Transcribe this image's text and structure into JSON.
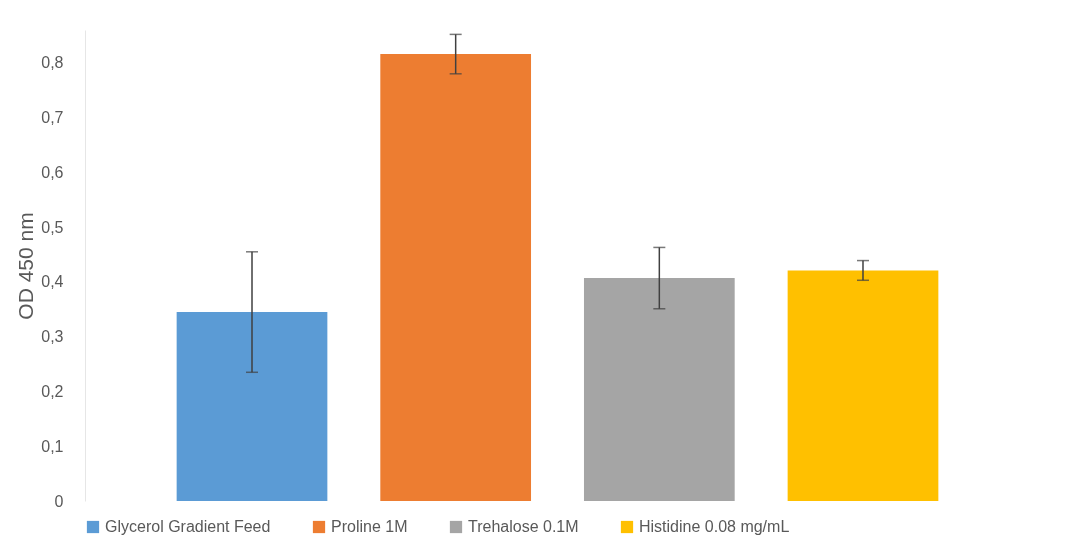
{
  "chart_data": {
    "type": "bar",
    "ylabel": "OD 450 nm",
    "categories": [
      null
    ],
    "series": [
      {
        "name": "Glycerol Gradient Feed",
        "color": "#5b9bd5",
        "values": [
          0.345
        ],
        "errors": [
          0.11
        ]
      },
      {
        "name": "Proline 1M",
        "color": "#ed7d31",
        "values": [
          0.816
        ],
        "errors": [
          0.036
        ]
      },
      {
        "name": "Trehalose 0.1M",
        "color": "#a5a5a5",
        "values": [
          0.407
        ],
        "errors": [
          0.056
        ]
      },
      {
        "name": "Histidine 0.08 mg/mL",
        "color": "#ffc000",
        "values": [
          0.421
        ],
        "errors": [
          0.018
        ]
      }
    ],
    "ylim": [
      0,
      0.86
    ],
    "yticks": [
      {
        "value": 0,
        "label": "0"
      },
      {
        "value": 0.1,
        "label": "0,1"
      },
      {
        "value": 0.2,
        "label": "0,2"
      },
      {
        "value": 0.3,
        "label": "0,3"
      },
      {
        "value": 0.4,
        "label": "0,4"
      },
      {
        "value": 0.5,
        "label": "0,5"
      },
      {
        "value": 0.6,
        "label": "0,6"
      },
      {
        "value": 0.7,
        "label": "0,7"
      },
      {
        "value": 0.8,
        "label": "0,8"
      }
    ],
    "tick_labels": "y",
    "grid": false,
    "legend": "bottom"
  }
}
